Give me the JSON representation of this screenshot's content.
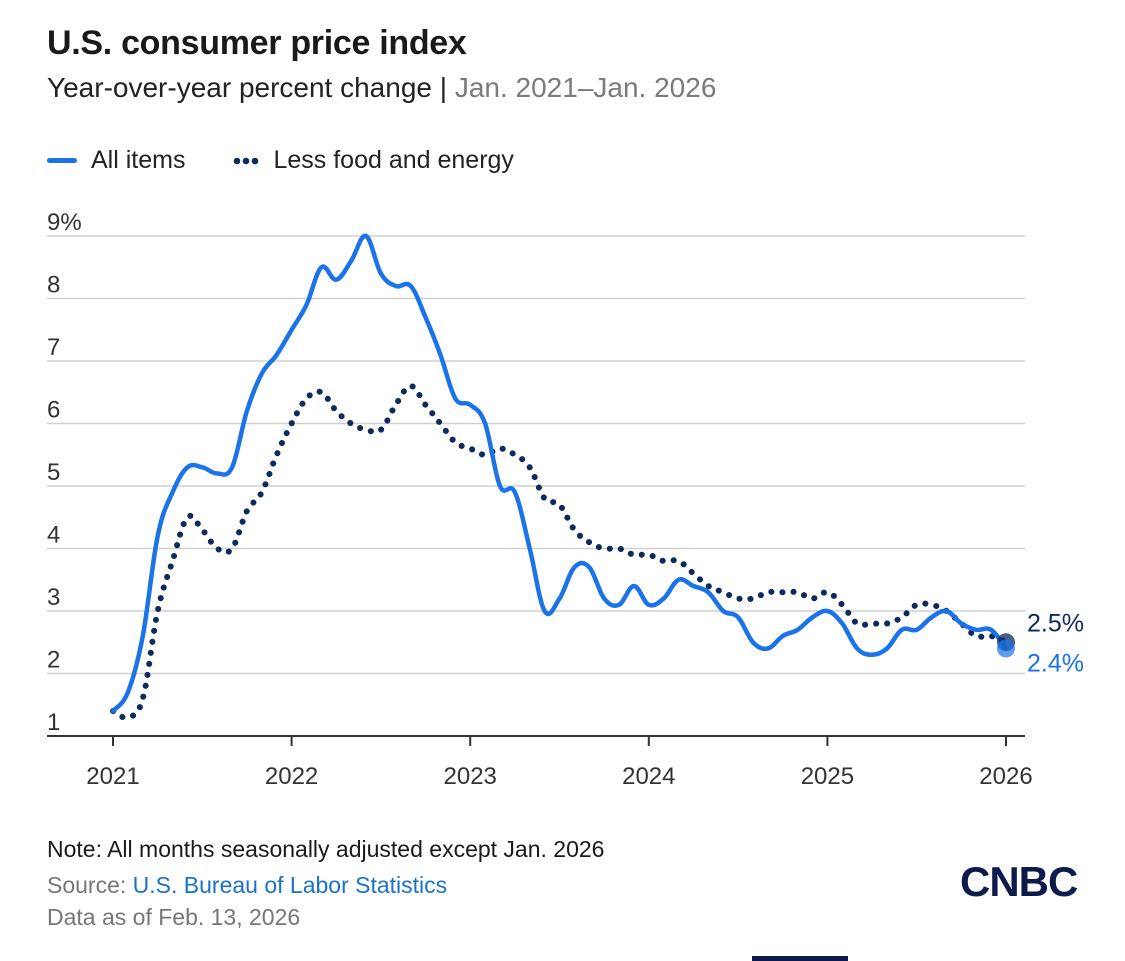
{
  "header": {
    "title": "U.S. consumer price index",
    "subtitle_main": "Year-over-year percent change",
    "subtitle_sep": " | ",
    "subtitle_range": "Jan. 2021–Jan. 2026"
  },
  "legend": {
    "all_items": "All items",
    "core": "Less food and energy"
  },
  "footer": {
    "note": "Note: All months seasonally adjusted except Jan. 2026",
    "source_label": "Source: ",
    "source_link": "U.S. Bureau of Labor Statistics",
    "as_of": "Data as of Feb. 13, 2026",
    "logo": "CNBC"
  },
  "colors": {
    "all_items": "#1a73e8",
    "core": "#0d2a5c",
    "grid": "#d0d0d0",
    "axis": "#333333"
  },
  "chart_data": {
    "type": "line",
    "title": "U.S. consumer price index",
    "ylabel": "Year-over-year percent change",
    "xlabel": "",
    "ylim": [
      1,
      9
    ],
    "yticks": [
      1,
      2,
      3,
      4,
      5,
      6,
      7,
      8,
      9
    ],
    "ytick_labels": [
      "1",
      "2",
      "3",
      "4",
      "5",
      "6",
      "7",
      "8",
      "9%"
    ],
    "xlim": [
      2021,
      2026
    ],
    "xticks": [
      2021,
      2022,
      2023,
      2024,
      2025,
      2026
    ],
    "xtick_labels": [
      "2021",
      "2022",
      "2023",
      "2024",
      "2025",
      "2026"
    ],
    "series": [
      {
        "name": "All items",
        "style": "solid",
        "values": [
          1.4,
          1.7,
          2.6,
          4.2,
          4.9,
          5.3,
          5.3,
          5.2,
          5.3,
          6.2,
          6.8,
          7.1,
          7.5,
          7.9,
          8.5,
          8.3,
          8.6,
          9.0,
          8.4,
          8.2,
          8.2,
          7.7,
          7.1,
          6.4,
          6.3,
          6.0,
          5.0,
          4.9,
          4.0,
          3.0,
          3.2,
          3.7,
          3.7,
          3.2,
          3.1,
          3.4,
          3.1,
          3.2,
          3.5,
          3.4,
          3.3,
          3.0,
          2.9,
          2.5,
          2.4,
          2.6,
          2.7,
          2.9,
          3.0,
          2.8,
          2.4,
          2.3,
          2.4,
          2.7,
          2.7,
          2.9,
          3.0,
          2.8,
          2.7,
          2.7,
          2.4
        ],
        "end_label": "2.4%"
      },
      {
        "name": "Less food and energy",
        "style": "dotted",
        "values": [
          1.4,
          1.3,
          1.6,
          3.0,
          3.8,
          4.5,
          4.3,
          4.0,
          4.0,
          4.6,
          4.9,
          5.5,
          6.0,
          6.4,
          6.5,
          6.2,
          6.0,
          5.9,
          5.9,
          6.3,
          6.6,
          6.3,
          6.0,
          5.7,
          5.6,
          5.5,
          5.6,
          5.5,
          5.3,
          4.8,
          4.7,
          4.3,
          4.1,
          4.0,
          4.0,
          3.9,
          3.9,
          3.8,
          3.8,
          3.6,
          3.4,
          3.3,
          3.2,
          3.2,
          3.3,
          3.3,
          3.3,
          3.2,
          3.3,
          3.1,
          2.8,
          2.8,
          2.8,
          2.9,
          3.1,
          3.1,
          3.0,
          2.8,
          2.6,
          2.6,
          2.5
        ],
        "end_label": "2.5%"
      }
    ],
    "legend": "top-left",
    "grid": "horizontal"
  }
}
